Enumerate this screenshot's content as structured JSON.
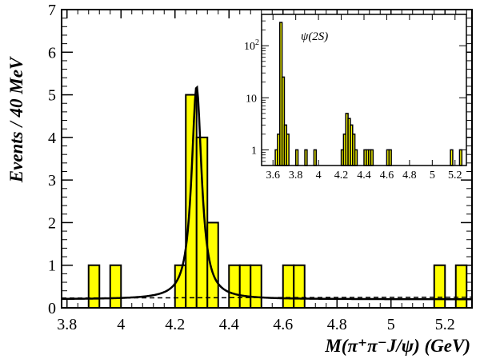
{
  "chart_data": [
    {
      "type": "bar",
      "role": "main",
      "xlabel": "M(π⁺π⁻J/ψ)  (GeV)",
      "ylabel": "Events / 40 MeV",
      "xlim": [
        3.78,
        5.3
      ],
      "ylim": [
        0,
        7
      ],
      "x_ticks": [
        "3.8",
        "4",
        "4.2",
        "4.4",
        "4.6",
        "4.8",
        "5",
        "5.2"
      ],
      "y_ticks": [
        "0",
        "1",
        "2",
        "3",
        "4",
        "5",
        "6",
        "7"
      ],
      "bin_width": 0.04,
      "bins": [
        {
          "x0": 3.88,
          "x1": 3.92,
          "count": 1
        },
        {
          "x0": 3.96,
          "x1": 4.0,
          "count": 1
        },
        {
          "x0": 4.2,
          "x1": 4.24,
          "count": 1
        },
        {
          "x0": 4.24,
          "x1": 4.28,
          "count": 5
        },
        {
          "x0": 4.28,
          "x1": 4.32,
          "count": 4
        },
        {
          "x0": 4.32,
          "x1": 4.36,
          "count": 2
        },
        {
          "x0": 4.4,
          "x1": 4.44,
          "count": 1
        },
        {
          "x0": 4.44,
          "x1": 4.48,
          "count": 1
        },
        {
          "x0": 4.48,
          "x1": 4.52,
          "count": 1
        },
        {
          "x0": 4.6,
          "x1": 4.64,
          "count": 1
        },
        {
          "x0": 4.64,
          "x1": 4.68,
          "count": 1
        },
        {
          "x0": 5.16,
          "x1": 5.2,
          "count": 1
        },
        {
          "x0": 5.24,
          "x1": 5.28,
          "count": 1
        }
      ],
      "fit": {
        "type": "breit-wigner-plus-linear",
        "mass": 4.28,
        "width": 0.045,
        "peak": 5.2,
        "background": [
          0.2,
          0.2
        ]
      },
      "background_line": {
        "style": "dashed",
        "y": [
          0.23,
          0.25
        ]
      },
      "fill_color": "#ffff00",
      "grid": false
    },
    {
      "type": "bar",
      "role": "inset",
      "annotation": "ψ(2S)",
      "xlim": [
        3.5,
        5.3
      ],
      "y_scale": "log",
      "ylim": [
        0.5,
        400
      ],
      "x_ticks": [
        "3.6",
        "3.8",
        "4",
        "4.2",
        "4.4",
        "4.6",
        "4.8",
        "5",
        "5.2"
      ],
      "y_ticks": [
        {
          "value": 1,
          "base": "1",
          "sup": ""
        },
        {
          "value": 10,
          "base": "10",
          "sup": ""
        },
        {
          "value": 100,
          "base": "10",
          "sup": "2"
        }
      ],
      "bin_width": 0.02,
      "bins": [
        {
          "x0": 3.62,
          "x1": 3.64,
          "count": 1
        },
        {
          "x0": 3.64,
          "x1": 3.66,
          "count": 2
        },
        {
          "x0": 3.66,
          "x1": 3.68,
          "count": 280
        },
        {
          "x0": 3.68,
          "x1": 3.7,
          "count": 25
        },
        {
          "x0": 3.7,
          "x1": 3.72,
          "count": 3
        },
        {
          "x0": 3.72,
          "x1": 3.74,
          "count": 2
        },
        {
          "x0": 3.8,
          "x1": 3.82,
          "count": 1
        },
        {
          "x0": 3.88,
          "x1": 3.9,
          "count": 1
        },
        {
          "x0": 3.96,
          "x1": 3.98,
          "count": 1
        },
        {
          "x0": 4.2,
          "x1": 4.22,
          "count": 1
        },
        {
          "x0": 4.22,
          "x1": 4.24,
          "count": 2
        },
        {
          "x0": 4.24,
          "x1": 4.26,
          "count": 5
        },
        {
          "x0": 4.26,
          "x1": 4.28,
          "count": 4
        },
        {
          "x0": 4.28,
          "x1": 4.3,
          "count": 3
        },
        {
          "x0": 4.3,
          "x1": 4.32,
          "count": 2
        },
        {
          "x0": 4.32,
          "x1": 4.34,
          "count": 1
        },
        {
          "x0": 4.4,
          "x1": 4.42,
          "count": 1
        },
        {
          "x0": 4.42,
          "x1": 4.44,
          "count": 1
        },
        {
          "x0": 4.44,
          "x1": 4.46,
          "count": 1
        },
        {
          "x0": 4.46,
          "x1": 4.48,
          "count": 1
        },
        {
          "x0": 4.6,
          "x1": 4.62,
          "count": 1
        },
        {
          "x0": 4.62,
          "x1": 4.64,
          "count": 1
        },
        {
          "x0": 5.16,
          "x1": 5.18,
          "count": 1
        },
        {
          "x0": 5.24,
          "x1": 5.26,
          "count": 1
        }
      ],
      "fill_color": "#ffff00",
      "grid": false
    }
  ]
}
